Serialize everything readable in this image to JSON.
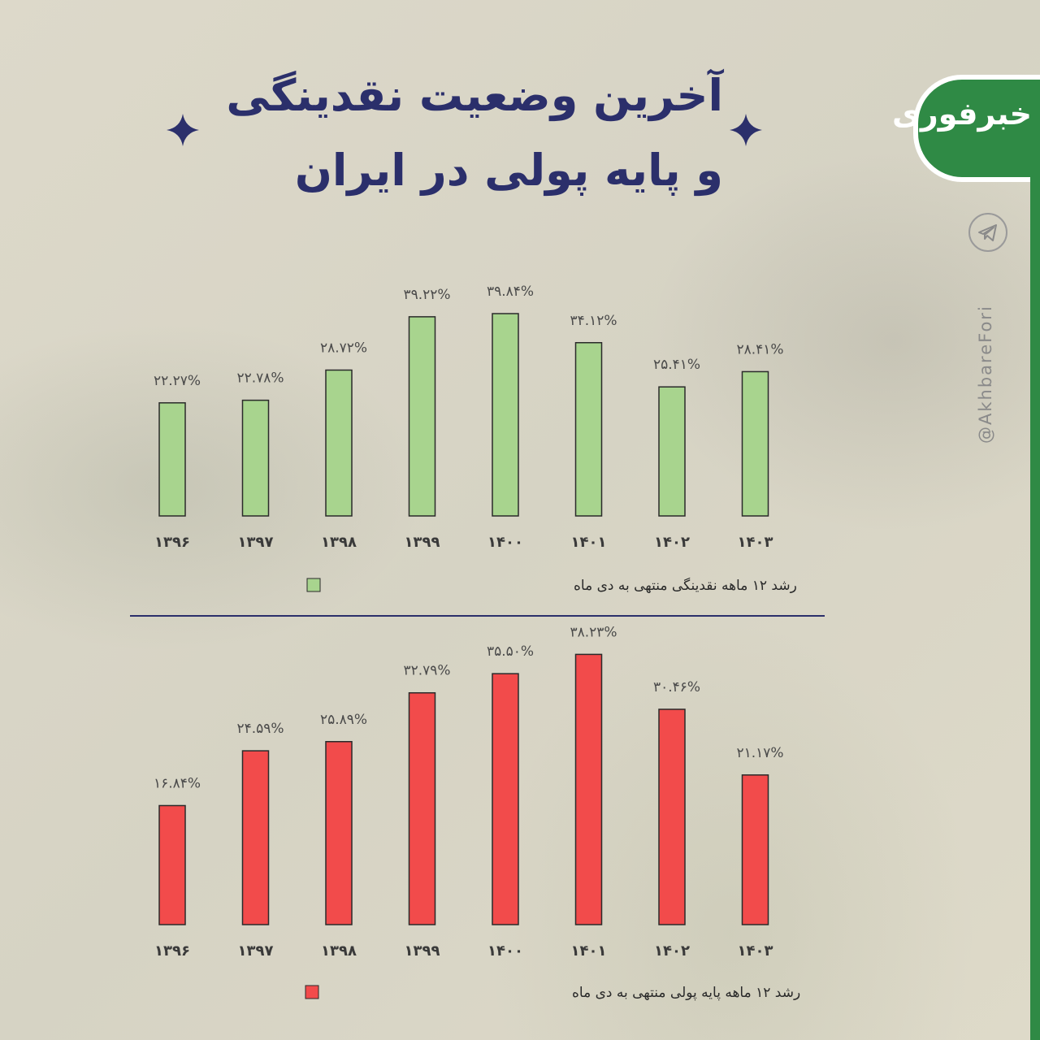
{
  "header": {
    "title_line1": "آخرین وضعیت نقدینگی",
    "title_line2": "و پایه پولی در ایران"
  },
  "brand": {
    "name": "خبرفوری",
    "handle": "@AkhbareFori",
    "accent_color": "#2f8a45",
    "icon": "telegram-icon"
  },
  "chart_data": [
    {
      "type": "bar",
      "categories": [
        "۱۳۹۶",
        "۱۳۹۷",
        "۱۳۹۸",
        "۱۳۹۹",
        "۱۴۰۰",
        "۱۴۰۱",
        "۱۴۰۲",
        "۱۴۰۳"
      ],
      "values": [
        22.27,
        22.78,
        28.72,
        39.22,
        39.84,
        34.12,
        25.41,
        28.41
      ],
      "value_labels": [
        "۲۲.۲۷%",
        "۲۲.۷۸%",
        "۲۸.۷۲%",
        "۳۹.۲۲%",
        "۳۹.۸۴%",
        "۳۴.۱۲%",
        "۲۵.۴۱%",
        "۲۸.۴۱%"
      ],
      "series": [
        {
          "name": "رشد ۱۲ ماهه نقدینگی منتهی به دی ماه",
          "color": "#a8d48e"
        }
      ],
      "ylim": [
        0,
        40
      ],
      "grid": false,
      "legend_position": "bottom"
    },
    {
      "type": "bar",
      "categories": [
        "۱۳۹۶",
        "۱۳۹۷",
        "۱۳۹۸",
        "۱۳۹۹",
        "۱۴۰۰",
        "۱۴۰۱",
        "۱۴۰۲",
        "۱۴۰۳"
      ],
      "values": [
        16.84,
        24.59,
        25.89,
        32.79,
        35.5,
        38.23,
        30.46,
        21.17
      ],
      "value_labels": [
        "۱۶.۸۴%",
        "۲۴.۵۹%",
        "۲۵.۸۹%",
        "۳۲.۷۹%",
        "۳۵.۵۰%",
        "۳۸.۲۳%",
        "۳۰.۴۶%",
        "۲۱.۱۷%"
      ],
      "series": [
        {
          "name": "رشد ۱۲ ماهه پایه پولی منتهی به دی ماه",
          "color": "#f24b4b"
        }
      ],
      "ylim": [
        0,
        40
      ],
      "grid": false,
      "legend_position": "bottom"
    }
  ]
}
